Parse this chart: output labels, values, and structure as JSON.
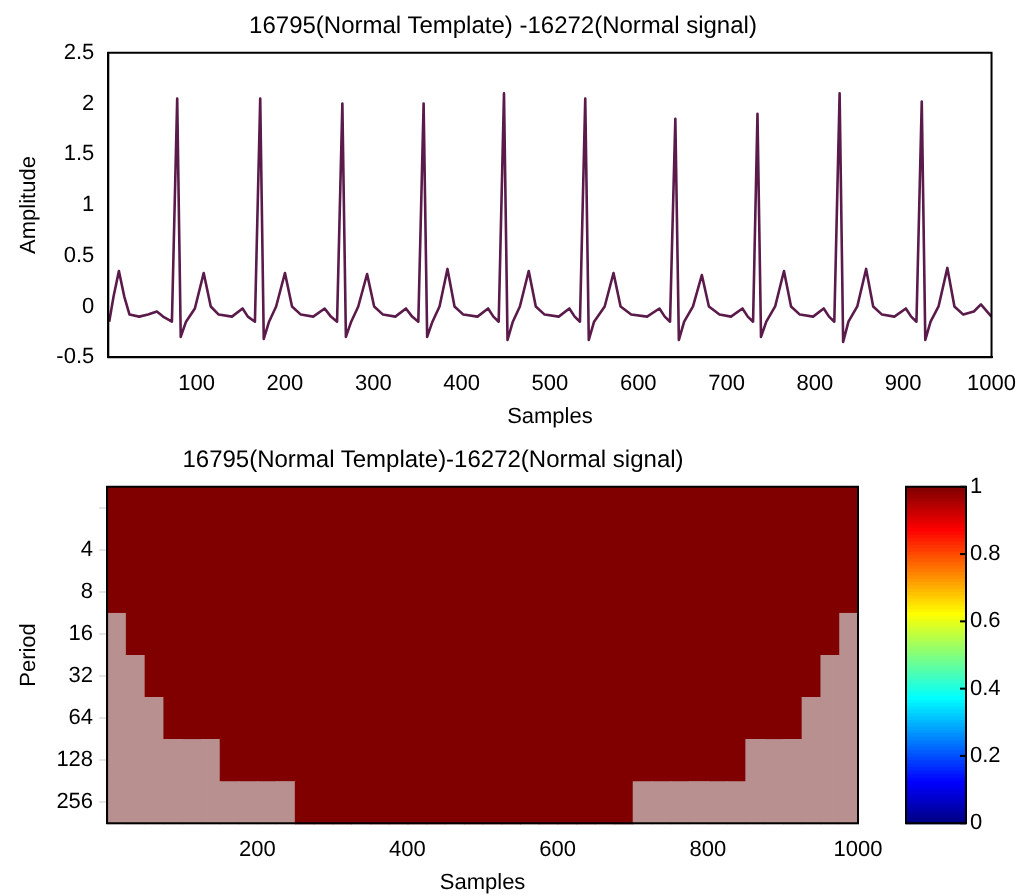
{
  "chart_data": [
    {
      "type": "line",
      "title": "16795(Normal Template) -16272(Normal signal)",
      "xlabel": "Samples",
      "ylabel": "Amplitude",
      "xlim": [
        0,
        1000
      ],
      "xticks": [
        100,
        200,
        300,
        400,
        500,
        600,
        700,
        800,
        900,
        1000
      ],
      "ylim": [
        -0.5,
        2.5
      ],
      "yticks": [
        -0.5,
        0,
        0.5,
        1,
        1.5,
        2,
        2.5
      ],
      "grid": false,
      "legend": false,
      "marker": "none",
      "line_style": "solid",
      "x": [
        1,
        6,
        12,
        18,
        24,
        35,
        45,
        55,
        62,
        72,
        78,
        82,
        88,
        98,
        108,
        116,
        125,
        140,
        152,
        158,
        166,
        172,
        176,
        182,
        190,
        200,
        208,
        218,
        232,
        245,
        252,
        259,
        265,
        269,
        275,
        283,
        293,
        301,
        311,
        325,
        337,
        344,
        351,
        357,
        361,
        367,
        375,
        384,
        392,
        402,
        418,
        430,
        436,
        442,
        448,
        452,
        458,
        466,
        476,
        484,
        494,
        510,
        522,
        528,
        534,
        540,
        544,
        550,
        562,
        572,
        580,
        592,
        610,
        624,
        630,
        636,
        642,
        646,
        652,
        662,
        672,
        680,
        692,
        705,
        718,
        724,
        730,
        735,
        739,
        745,
        755,
        765,
        773,
        783,
        798,
        810,
        816,
        822,
        828,
        832,
        838,
        848,
        858,
        866,
        876,
        890,
        903,
        909,
        915,
        921,
        925,
        931,
        940,
        950,
        958,
        968,
        980,
        988,
        995,
        1000
      ],
      "series": [
        {
          "color": "#5a1a4a",
          "values": [
            -0.15,
            0.1,
            0.35,
            0.1,
            -0.08,
            -0.1,
            -0.08,
            -0.05,
            -0.1,
            -0.15,
            2.05,
            -0.3,
            -0.15,
            -0.02,
            0.33,
            0,
            -0.08,
            -0.1,
            -0.02,
            -0.1,
            -0.15,
            2.05,
            -0.32,
            -0.15,
            0,
            0.33,
            0,
            -0.08,
            -0.1,
            -0.02,
            -0.1,
            -0.15,
            2,
            -0.3,
            -0.15,
            0,
            0.32,
            0,
            -0.08,
            -0.1,
            -0.02,
            -0.1,
            -0.15,
            2,
            -0.3,
            -0.15,
            0,
            0.37,
            0,
            -0.08,
            -0.1,
            -0.02,
            -0.1,
            -0.15,
            2.1,
            -0.33,
            -0.15,
            0,
            0.35,
            0,
            -0.08,
            -0.1,
            -0.02,
            -0.1,
            -0.15,
            2.05,
            -0.33,
            -0.15,
            0,
            0.33,
            0,
            -0.08,
            -0.1,
            -0.02,
            -0.1,
            -0.15,
            1.85,
            -0.33,
            -0.15,
            0,
            0.31,
            0,
            -0.08,
            -0.1,
            -0.02,
            -0.1,
            -0.15,
            1.9,
            -0.3,
            -0.15,
            0,
            0.35,
            0,
            -0.08,
            -0.1,
            -0.02,
            -0.1,
            -0.15,
            2.1,
            -0.35,
            -0.15,
            0,
            0.37,
            0,
            -0.08,
            -0.1,
            -0.02,
            -0.1,
            -0.15,
            2.02,
            -0.33,
            -0.15,
            0,
            0.38,
            0,
            -0.08,
            -0.05,
            0.02,
            -0.05,
            -0.1
          ]
        }
      ]
    },
    {
      "type": "heatmap",
      "title": "16795(Normal Template)-16272(Normal signal)",
      "xlabel": "Samples",
      "ylabel": "Period",
      "xlim": [
        0,
        1000
      ],
      "xticks": [
        200,
        400,
        600,
        800,
        1000
      ],
      "clim": [
        0,
        1
      ],
      "cticks": [
        0,
        0.2,
        0.4,
        0.6,
        0.8,
        1
      ],
      "x": [
        12.5,
        37.5,
        62.5,
        87.5,
        112.5,
        137.5,
        162.5,
        187.5,
        212.5,
        237.5,
        262.5,
        287.5,
        312.5,
        337.5,
        362.5,
        387.5,
        412.5,
        437.5,
        462.5,
        487.5,
        512.5,
        537.5,
        562.5,
        587.5,
        612.5,
        637.5,
        662.5,
        687.5,
        712.5,
        737.5,
        762.5,
        787.5,
        812.5,
        837.5,
        862.5,
        887.5,
        912.5,
        937.5,
        962.5,
        987.5
      ],
      "y_categories": [
        null,
        "4",
        "8",
        "16",
        "32",
        "64",
        "128",
        "256"
      ],
      "cells": [
        [
          1,
          1,
          1,
          1,
          1,
          1,
          1,
          1,
          1,
          1,
          1,
          1,
          1,
          1,
          1,
          1,
          1,
          1,
          1,
          1,
          1,
          1,
          1,
          1,
          1,
          1,
          1,
          1,
          1,
          1,
          1,
          1,
          1,
          1,
          1,
          1,
          1,
          1,
          1,
          1
        ],
        [
          1,
          1,
          1,
          1,
          1,
          1,
          1,
          1,
          1,
          1,
          1,
          1,
          1,
          1,
          1,
          1,
          1,
          1,
          1,
          1,
          1,
          1,
          1,
          1,
          1,
          1,
          1,
          1,
          1,
          1,
          1,
          1,
          1,
          1,
          1,
          1,
          1,
          1,
          1,
          1
        ],
        [
          1,
          1,
          1,
          1,
          1,
          1,
          1,
          1,
          1,
          1,
          1,
          1,
          1,
          1,
          1,
          1,
          1,
          1,
          1,
          1,
          1,
          1,
          1,
          1,
          1,
          1,
          1,
          1,
          1,
          1,
          1,
          1,
          1,
          1,
          1,
          1,
          1,
          1,
          1,
          1
        ],
        [
          null,
          1,
          1,
          1,
          1,
          1,
          1,
          1,
          1,
          1,
          1,
          1,
          1,
          1,
          1,
          1,
          1,
          1,
          1,
          1,
          1,
          1,
          1,
          1,
          1,
          1,
          1,
          1,
          1,
          1,
          1,
          1,
          1,
          1,
          1,
          1,
          1,
          1,
          1,
          null
        ],
        [
          null,
          null,
          1,
          1,
          1,
          1,
          1,
          1,
          1,
          1,
          1,
          1,
          1,
          1,
          1,
          1,
          1,
          1,
          1,
          1,
          1,
          1,
          1,
          1,
          1,
          1,
          1,
          1,
          1,
          1,
          1,
          1,
          1,
          1,
          1,
          1,
          1,
          1,
          null,
          null
        ],
        [
          null,
          null,
          null,
          1,
          1,
          1,
          1,
          1,
          1,
          1,
          1,
          1,
          1,
          1,
          1,
          1,
          1,
          1,
          1,
          1,
          1,
          1,
          1,
          1,
          1,
          1,
          1,
          1,
          1,
          1,
          1,
          1,
          1,
          1,
          1,
          1,
          1,
          null,
          null,
          null
        ],
        [
          null,
          null,
          null,
          null,
          null,
          null,
          1,
          1,
          1,
          1,
          1,
          1,
          1,
          1,
          1,
          1,
          1,
          1,
          1,
          1,
          1,
          1,
          1,
          1,
          1,
          1,
          1,
          1,
          1,
          1,
          1,
          1,
          1,
          1,
          null,
          null,
          null,
          null,
          null,
          null
        ],
        [
          null,
          null,
          null,
          null,
          null,
          null,
          null,
          null,
          null,
          null,
          1,
          1,
          1,
          1,
          1,
          1,
          1,
          1,
          1,
          1,
          1,
          1,
          1,
          1,
          1,
          1,
          1,
          1,
          null,
          null,
          null,
          null,
          null,
          null,
          null,
          null,
          null,
          null,
          null,
          null
        ]
      ]
    }
  ]
}
